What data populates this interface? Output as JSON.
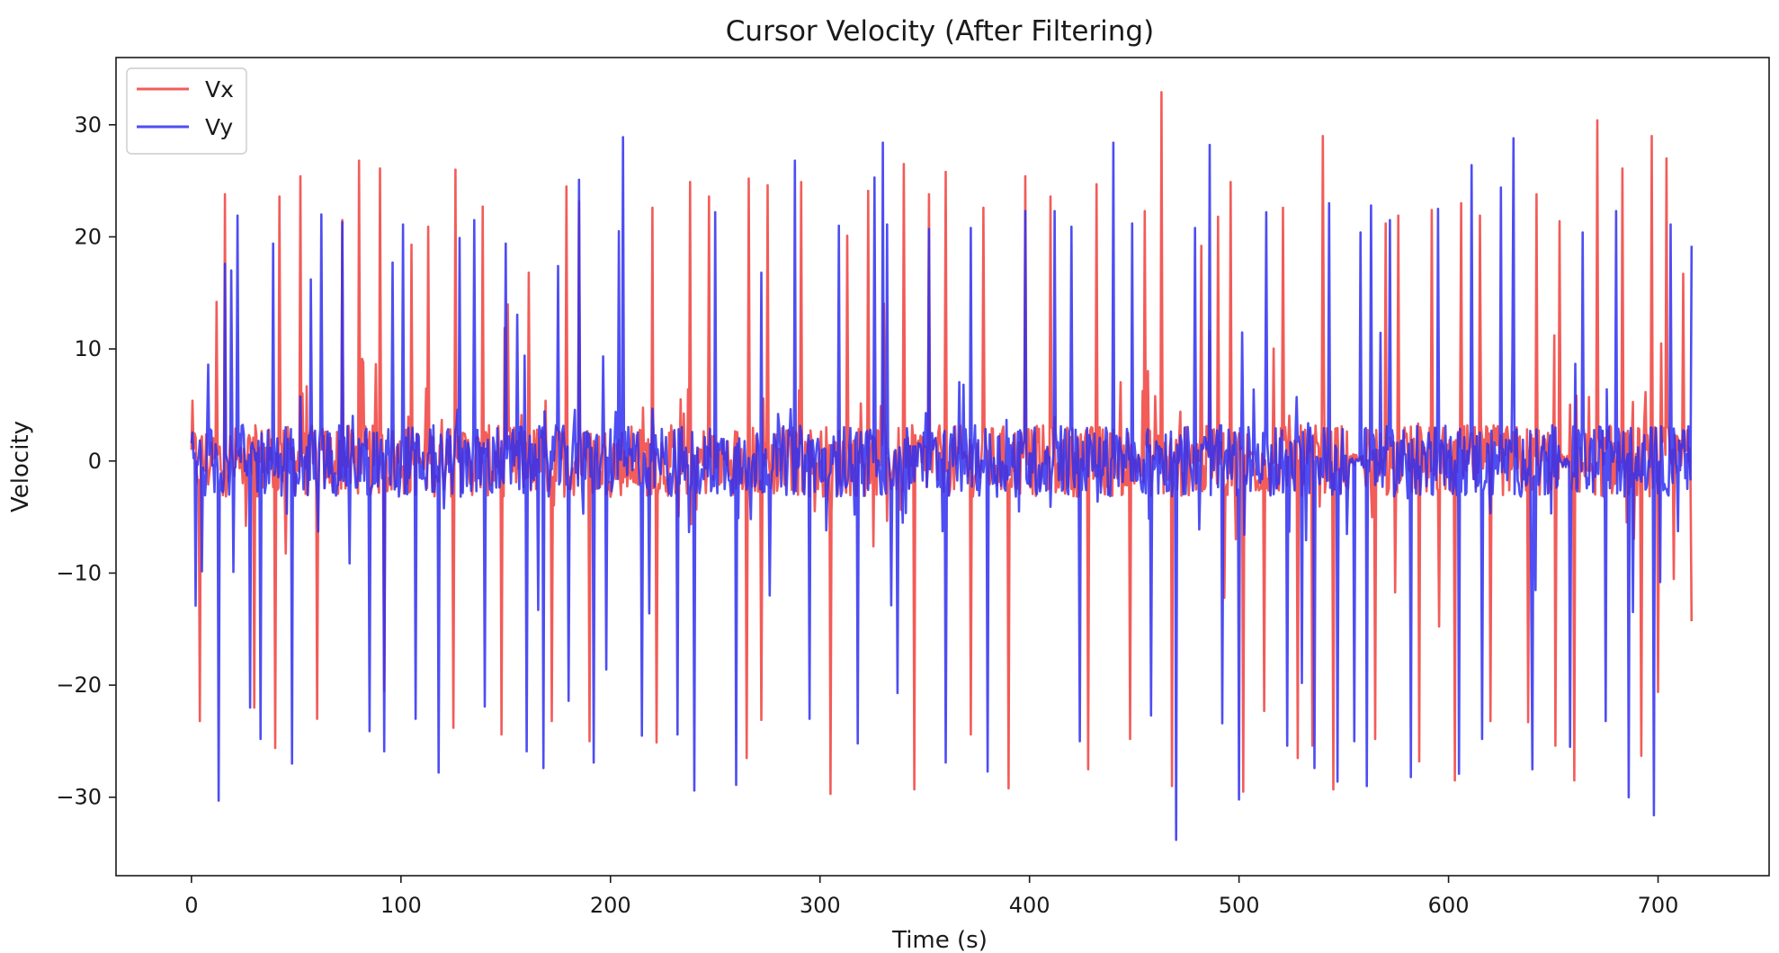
{
  "chart_data": {
    "type": "line",
    "title": "Cursor Velocity (After Filtering)",
    "xlabel": "Time (s)",
    "ylabel": "Velocity",
    "xlim": [
      -36,
      753
    ],
    "ylim": [
      -37,
      36
    ],
    "x_ticks": [
      0,
      100,
      200,
      300,
      400,
      500,
      600,
      700
    ],
    "y_ticks": [
      -30,
      -20,
      -10,
      0,
      10,
      20,
      30
    ],
    "x_tick_labels": [
      "0",
      "100",
      "200",
      "300",
      "400",
      "500",
      "600",
      "700"
    ],
    "y_tick_labels": [
      "−30",
      "−20",
      "−10",
      "0",
      "10",
      "20",
      "30"
    ],
    "grid": false,
    "legend_position": "upper-left",
    "series": [
      {
        "name": "Vx",
        "color": "#f0403c",
        "opacity": 0.85,
        "peaks": [
          [
            4,
            -23.2
          ],
          [
            12,
            14.2
          ],
          [
            16,
            23.8
          ],
          [
            30,
            -22.0
          ],
          [
            40,
            -25.6
          ],
          [
            42,
            23.6
          ],
          [
            52,
            25.4
          ],
          [
            60,
            -23.0
          ],
          [
            72,
            21.5
          ],
          [
            80,
            26.8
          ],
          [
            90,
            26.1
          ],
          [
            92,
            -20.5
          ],
          [
            105,
            19.3
          ],
          [
            113,
            20.9
          ],
          [
            125,
            -23.8
          ],
          [
            126,
            26.0
          ],
          [
            139,
            22.7
          ],
          [
            148,
            -24.4
          ],
          [
            161,
            16.8
          ],
          [
            172,
            -23.2
          ],
          [
            179,
            24.5
          ],
          [
            185,
            23.2
          ],
          [
            190,
            -25.0
          ],
          [
            220,
            22.6
          ],
          [
            222,
            -25.1
          ],
          [
            238,
            24.9
          ],
          [
            247,
            23.6
          ],
          [
            265,
            -26.5
          ],
          [
            266,
            25.2
          ],
          [
            272,
            -23.1
          ],
          [
            275,
            24.6
          ],
          [
            291,
            24.9
          ],
          [
            305,
            -29.7
          ],
          [
            313,
            20.1
          ],
          [
            323,
            24.1
          ],
          [
            340,
            26.5
          ],
          [
            345,
            -29.3
          ],
          [
            352,
            23.8
          ],
          [
            360,
            25.8
          ],
          [
            372,
            -24.4
          ],
          [
            378,
            22.6
          ],
          [
            390,
            -29.2
          ],
          [
            398,
            25.4
          ],
          [
            410,
            23.6
          ],
          [
            428,
            -27.5
          ],
          [
            432,
            24.7
          ],
          [
            448,
            -24.8
          ],
          [
            455,
            22.3
          ],
          [
            463,
            32.9
          ],
          [
            468,
            -29.0
          ],
          [
            482,
            19.2
          ],
          [
            490,
            21.8
          ],
          [
            496,
            24.9
          ],
          [
            502,
            -29.5
          ],
          [
            512,
            -22.3
          ],
          [
            521,
            22.6
          ],
          [
            528,
            -26.5
          ],
          [
            535,
            -25.4
          ],
          [
            540,
            29.0
          ],
          [
            545,
            -29.3
          ],
          [
            565,
            -24.8
          ],
          [
            570,
            21.2
          ],
          [
            576,
            21.9
          ],
          [
            586,
            -26.8
          ],
          [
            592,
            22.4
          ],
          [
            603,
            -28.5
          ],
          [
            606,
            23.0
          ],
          [
            615,
            21.9
          ],
          [
            620,
            -23.2
          ],
          [
            638,
            -23.3
          ],
          [
            642,
            23.8
          ],
          [
            651,
            -25.4
          ],
          [
            653,
            21.4
          ],
          [
            660,
            -28.5
          ],
          [
            671,
            30.4
          ],
          [
            683,
            26.1
          ],
          [
            692,
            -26.3
          ],
          [
            697,
            29.0
          ],
          [
            700,
            -20.6
          ],
          [
            704,
            27.0
          ],
          [
            712,
            16.7
          ],
          [
            716,
            -14.3
          ]
        ]
      },
      {
        "name": "Vy",
        "color": "#2f2ff0",
        "opacity": 0.85,
        "peaks": [
          [
            2,
            -12.9
          ],
          [
            8,
            8.6
          ],
          [
            13,
            -30.3
          ],
          [
            16,
            17.6
          ],
          [
            19,
            17.0
          ],
          [
            22,
            21.9
          ],
          [
            28,
            -22.0
          ],
          [
            33,
            -24.8
          ],
          [
            39,
            19.4
          ],
          [
            48,
            -27.0
          ],
          [
            57,
            16.2
          ],
          [
            62,
            22.0
          ],
          [
            72,
            21.3
          ],
          [
            85,
            -24.1
          ],
          [
            92,
            -25.9
          ],
          [
            96,
            17.7
          ],
          [
            101,
            21.1
          ],
          [
            107,
            -23.0
          ],
          [
            118,
            -27.8
          ],
          [
            128,
            19.9
          ],
          [
            135,
            21.5
          ],
          [
            140,
            -21.9
          ],
          [
            150,
            19.4
          ],
          [
            160,
            -25.9
          ],
          [
            168,
            -27.4
          ],
          [
            175,
            17.4
          ],
          [
            180,
            -21.4
          ],
          [
            185,
            25.1
          ],
          [
            192,
            -26.9
          ],
          [
            198,
            -18.6
          ],
          [
            204,
            20.5
          ],
          [
            206,
            28.9
          ],
          [
            215,
            -24.5
          ],
          [
            232,
            -24.4
          ],
          [
            240,
            -29.4
          ],
          [
            250,
            22.2
          ],
          [
            260,
            -28.9
          ],
          [
            272,
            16.8
          ],
          [
            288,
            26.8
          ],
          [
            295,
            -23.0
          ],
          [
            309,
            21.0
          ],
          [
            318,
            -25.2
          ],
          [
            326,
            25.3
          ],
          [
            330,
            28.4
          ],
          [
            332,
            21.1
          ],
          [
            337,
            -20.7
          ],
          [
            352,
            20.7
          ],
          [
            360,
            -26.9
          ],
          [
            372,
            20.8
          ],
          [
            380,
            -27.7
          ],
          [
            398,
            22.3
          ],
          [
            412,
            22.3
          ],
          [
            420,
            20.9
          ],
          [
            424,
            -25.0
          ],
          [
            440,
            28.4
          ],
          [
            449,
            21.2
          ],
          [
            458,
            -22.7
          ],
          [
            470,
            -33.8
          ],
          [
            479,
            20.8
          ],
          [
            486,
            28.2
          ],
          [
            492,
            -23.4
          ],
          [
            500,
            -30.2
          ],
          [
            513,
            22.2
          ],
          [
            523,
            -25.4
          ],
          [
            530,
            -19.8
          ],
          [
            536,
            -27.4
          ],
          [
            543,
            23.0
          ],
          [
            547,
            -28.6
          ],
          [
            555,
            -25.0
          ],
          [
            558,
            20.4
          ],
          [
            561,
            -29.0
          ],
          [
            563,
            22.8
          ],
          [
            572,
            21.5
          ],
          [
            582,
            -28.2
          ],
          [
            595,
            22.5
          ],
          [
            605,
            -27.9
          ],
          [
            611,
            26.4
          ],
          [
            616,
            -24.8
          ],
          [
            625,
            24.4
          ],
          [
            631,
            28.8
          ],
          [
            640,
            -27.5
          ],
          [
            658,
            -25.5
          ],
          [
            664,
            20.4
          ],
          [
            675,
            -23.2
          ],
          [
            680,
            22.3
          ],
          [
            686,
            -30.0
          ],
          [
            698,
            -31.6
          ],
          [
            706,
            21.1
          ],
          [
            716,
            19.2
          ]
        ]
      }
    ]
  }
}
